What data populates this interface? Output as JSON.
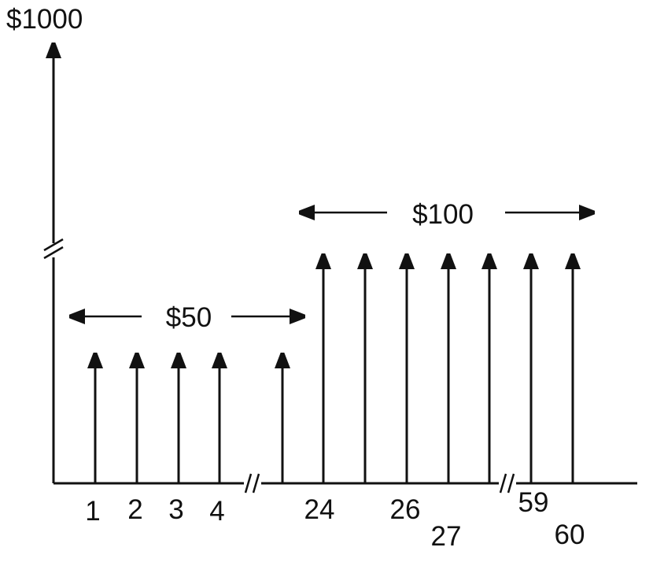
{
  "top_value_label": "$1000",
  "group_one": {
    "amount_label": "$50"
  },
  "group_two": {
    "amount_label": "$100"
  },
  "period_labels": [
    "1",
    "2",
    "3",
    "4",
    "24",
    "26",
    "27",
    "59",
    "60"
  ],
  "colors": {
    "ink": "#111111",
    "background": "#ffffff"
  }
}
